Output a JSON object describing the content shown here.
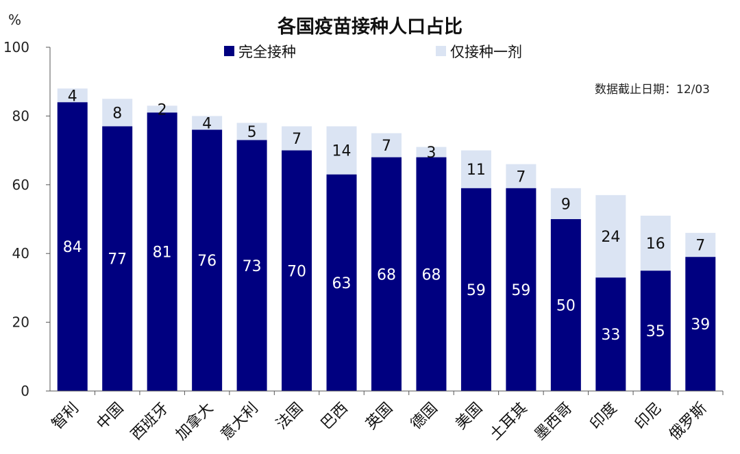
{
  "chart_data": {
    "type": "bar",
    "stacked": true,
    "title": "各国疫苗接种人口占比",
    "ylabel": "%",
    "ylim": [
      0,
      100
    ],
    "yticks": [
      0,
      20,
      40,
      60,
      80,
      100
    ],
    "note": "数据截止日期：12/03",
    "legend_position": "top",
    "categories": [
      "智利",
      "中国",
      "西班牙",
      "加拿大",
      "意大利",
      "法国",
      "巴西",
      "英国",
      "德国",
      "美国",
      "土耳其",
      "墨西哥",
      "印度",
      "印尼",
      "俄罗斯"
    ],
    "series": [
      {
        "name": "完全接种",
        "color": "#000080",
        "values": [
          84,
          77,
          81,
          76,
          73,
          70,
          63,
          68,
          68,
          59,
          59,
          50,
          33,
          35,
          39
        ]
      },
      {
        "name": "仅接种一剂",
        "color": "#dbe4f3",
        "values": [
          4,
          8,
          2,
          4,
          5,
          7,
          14,
          7,
          3,
          11,
          7,
          9,
          24,
          16,
          7
        ]
      }
    ]
  }
}
